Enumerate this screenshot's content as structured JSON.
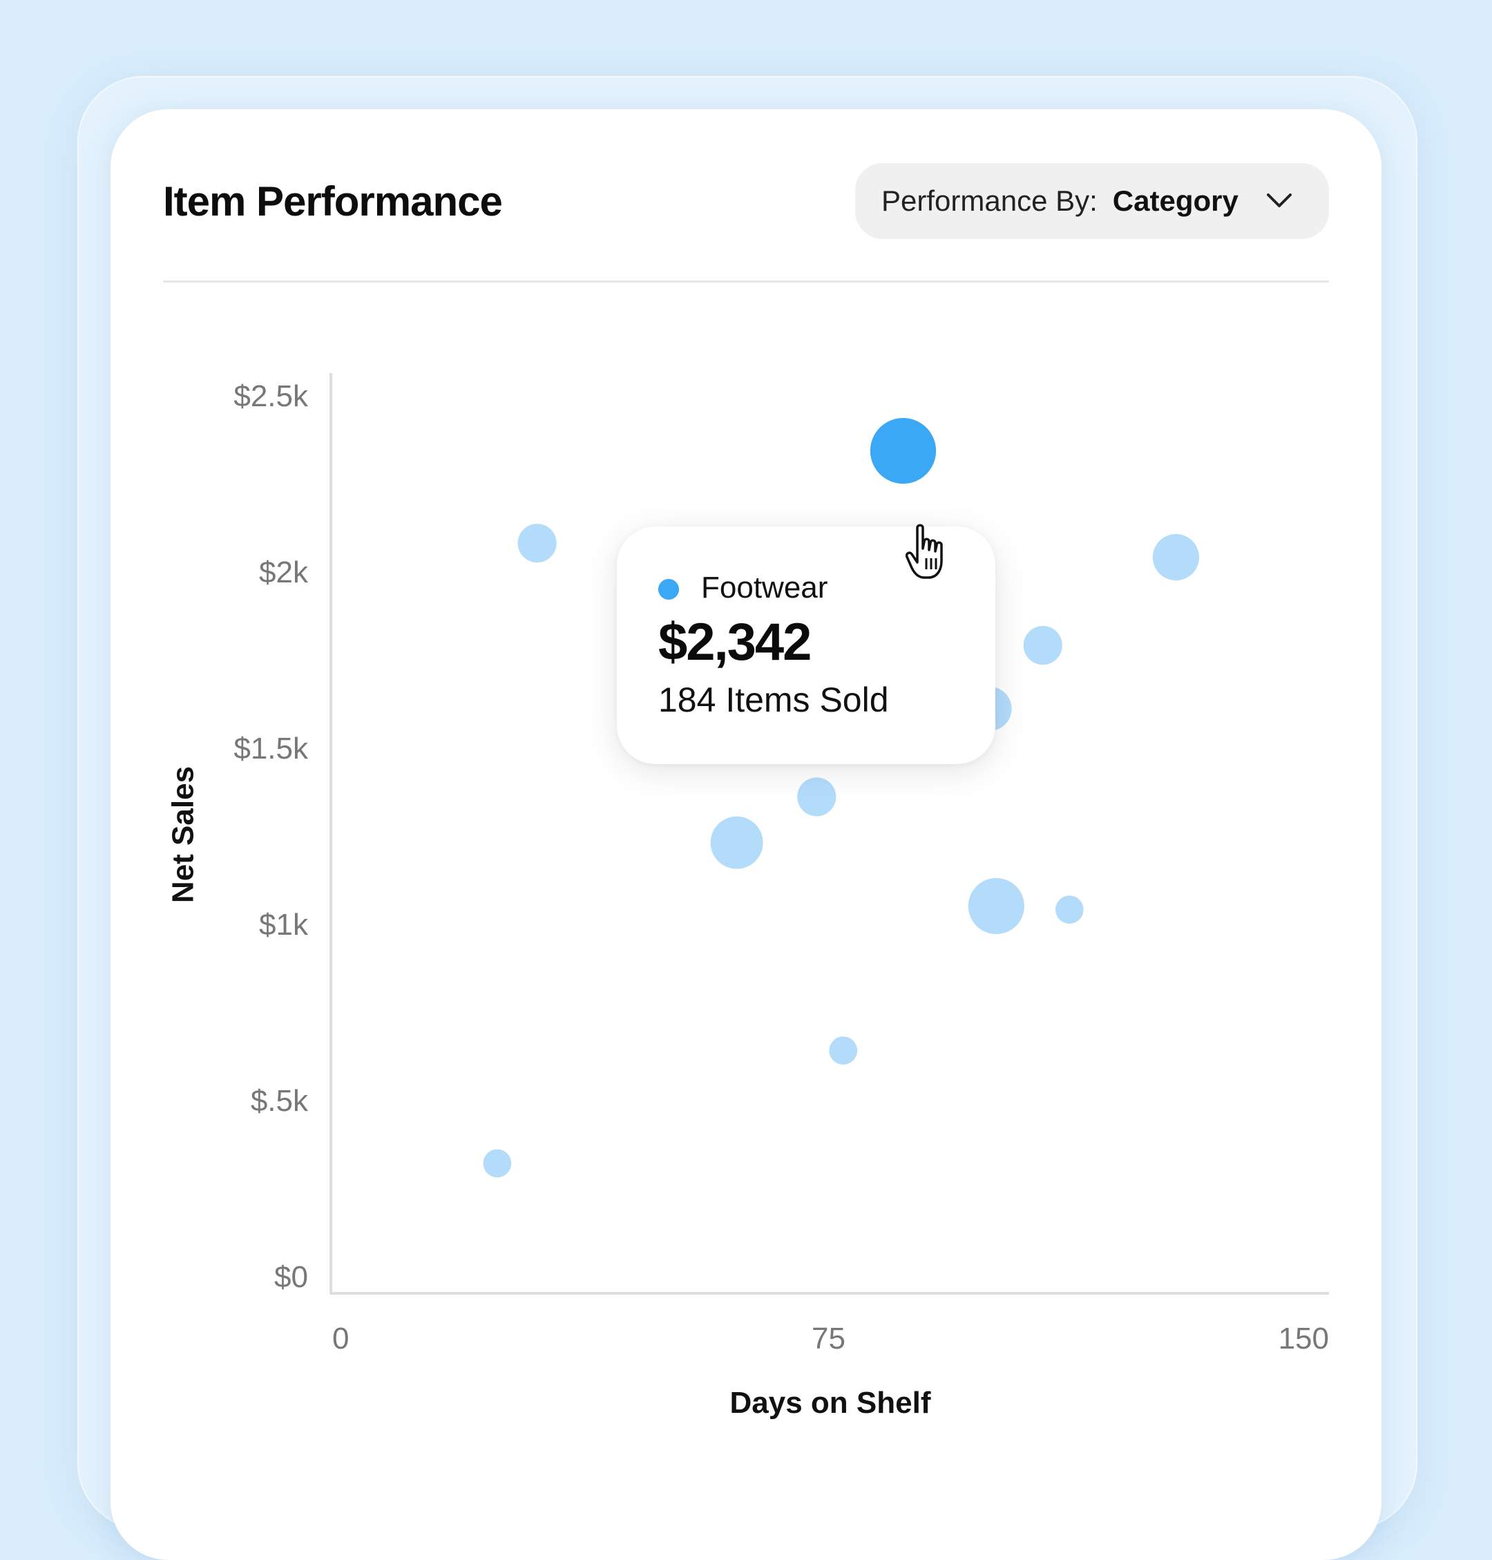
{
  "card": {
    "title": "Item Performance"
  },
  "dropdown": {
    "label": "Performance By:",
    "value": "Category",
    "icon": "chevron-down-icon"
  },
  "tooltip": {
    "category": "Footwear",
    "value": "$2,342",
    "subtext": "184 Items Sold",
    "dot_color": "#3aa8f5"
  },
  "colors": {
    "background": "#d9edfc",
    "highlight_bubble": "#3aa8f5",
    "bubble": "#b3dcfb"
  },
  "chart_data": {
    "type": "scatter",
    "xlabel": "Days on Shelf",
    "ylabel": "Net Sales",
    "xlim": [
      0,
      150
    ],
    "ylim": [
      0,
      2500
    ],
    "x_ticks": [
      {
        "value": 0,
        "label": "0"
      },
      {
        "value": 75,
        "label": "75"
      },
      {
        "value": 150,
        "label": "150"
      }
    ],
    "y_ticks": [
      {
        "value": 2500,
        "label": "$2.5k"
      },
      {
        "value": 2000,
        "label": "$2k"
      },
      {
        "value": 1500,
        "label": "$1.5k"
      },
      {
        "value": 1000,
        "label": "$1k"
      },
      {
        "value": 500,
        "label": "$.5k"
      },
      {
        "value": 0,
        "label": "$0"
      }
    ],
    "grid": false,
    "points": [
      {
        "x": 86,
        "y": 2342,
        "size": 184,
        "highlight": true,
        "name": "Footwear"
      },
      {
        "x": 31,
        "y": 2080,
        "size": 40
      },
      {
        "x": 127,
        "y": 2040,
        "size": 70
      },
      {
        "x": 107,
        "y": 1790,
        "size": 40
      },
      {
        "x": 99,
        "y": 1610,
        "size": 60
      },
      {
        "x": 73,
        "y": 1360,
        "size": 40
      },
      {
        "x": 61,
        "y": 1230,
        "size": 100
      },
      {
        "x": 100,
        "y": 1050,
        "size": 120
      },
      {
        "x": 111,
        "y": 1040,
        "size": 12
      },
      {
        "x": 77,
        "y": 640,
        "size": 12
      },
      {
        "x": 25,
        "y": 320,
        "size": 12
      }
    ]
  }
}
